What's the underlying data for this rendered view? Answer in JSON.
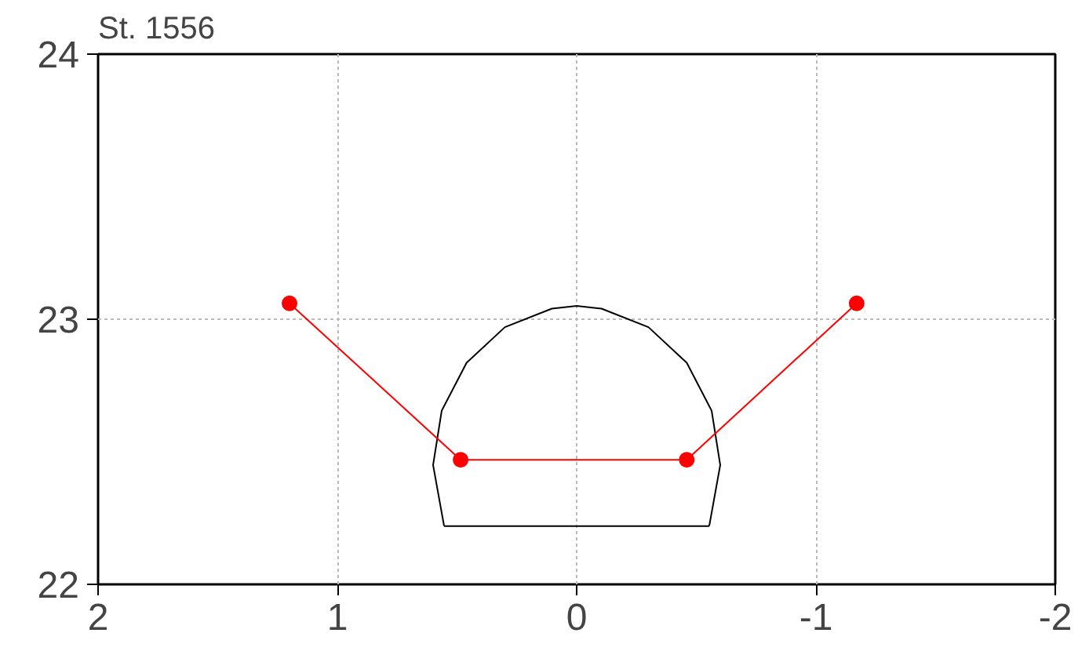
{
  "chart_data": {
    "type": "line",
    "title": "St. 1556",
    "xlim": [
      2,
      -2
    ],
    "ylim": [
      22,
      24
    ],
    "xticks": [
      2,
      1,
      0,
      -1,
      -2
    ],
    "yticks": [
      22,
      23,
      24
    ],
    "grid": true,
    "series": [
      {
        "color": "#000000",
        "marker": "none",
        "x": [
          0.554,
          0.6,
          0.564,
          0.46,
          0.3,
          0.104,
          0,
          -0.104,
          -0.3,
          -0.46,
          -0.564,
          -0.6,
          -0.554
        ],
        "values": [
          22.22,
          22.45,
          22.655,
          22.836,
          22.97,
          23.04,
          23.05,
          23.04,
          22.97,
          22.836,
          22.655,
          22.45,
          22.22
        ]
      },
      {
        "color": "#000000",
        "marker": "none",
        "x": [
          0.554,
          -0.554
        ],
        "values": [
          22.22,
          22.22
        ]
      },
      {
        "color": "#ff0000",
        "marker": "circle",
        "x": [
          1.2,
          0.485,
          -0.46,
          -1.17
        ],
        "values": [
          23.06,
          22.47,
          22.47,
          23.06
        ]
      }
    ]
  }
}
